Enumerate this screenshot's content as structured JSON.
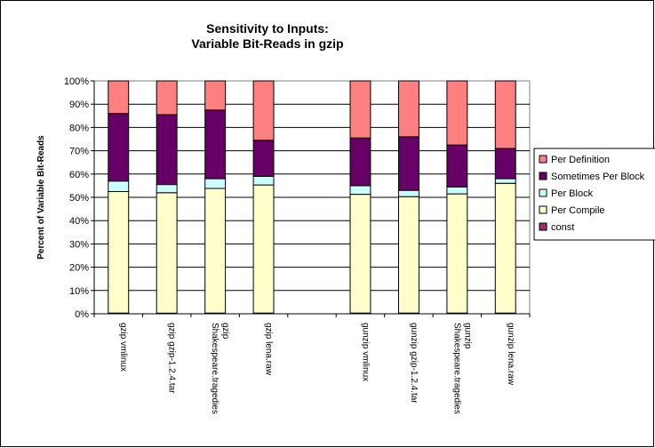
{
  "chart_data": {
    "type": "bar",
    "stacked": true,
    "percent_stacked": true,
    "title_lines": [
      "Sensitivity to Inputs:",
      "Variable Bit-Reads in gzip"
    ],
    "xlabel": "",
    "ylabel": "Percent of Variable Bit-Reads",
    "ylim": [
      0,
      100
    ],
    "y_ticks": [
      "0%",
      "10%",
      "20%",
      "30%",
      "40%",
      "50%",
      "60%",
      "70%",
      "80%",
      "90%",
      "100%"
    ],
    "grid": true,
    "legend_position": "right",
    "categories": [
      [
        "gzip vmlinux"
      ],
      [
        "gzip gzip-1.2.4.tar"
      ],
      [
        "gzip",
        "Shakespeare.tragedies"
      ],
      [
        "gzip lena.raw"
      ],
      [
        ""
      ],
      [
        "gunzip vmlinux"
      ],
      [
        "gunzip gzip-1.2.4.tar"
      ],
      [
        "gunzip",
        "Shakespeare.tragedies"
      ],
      [
        "gunzip lena.raw"
      ]
    ],
    "series": [
      {
        "name": "const",
        "color": "#993366",
        "values": [
          0.3,
          0.3,
          0.3,
          0.3,
          null,
          0.3,
          0.3,
          0.3,
          0.3
        ]
      },
      {
        "name": "Per Compile",
        "color": "#FFFFCC",
        "values": [
          52.2,
          51.7,
          53.5,
          55.0,
          null,
          51.0,
          50.0,
          51.2,
          55.7
        ]
      },
      {
        "name": "Per Block",
        "color": "#CCFFFF",
        "values": [
          4.5,
          3.5,
          4.2,
          3.7,
          null,
          3.7,
          2.7,
          3.0,
          2.0
        ]
      },
      {
        "name": "Sometimes Per Block",
        "color": "#660066",
        "values": [
          29.0,
          30.0,
          29.5,
          15.5,
          null,
          20.5,
          23.0,
          18.0,
          13.0
        ]
      },
      {
        "name": "Per Definition",
        "color": "#FF8080",
        "values": [
          14.0,
          14.5,
          12.5,
          25.5,
          null,
          24.5,
          24.0,
          27.5,
          29.0
        ]
      }
    ],
    "legend_order": [
      "Per Definition",
      "Sometimes Per Block",
      "Per Block",
      "Per Compile",
      "const"
    ]
  }
}
